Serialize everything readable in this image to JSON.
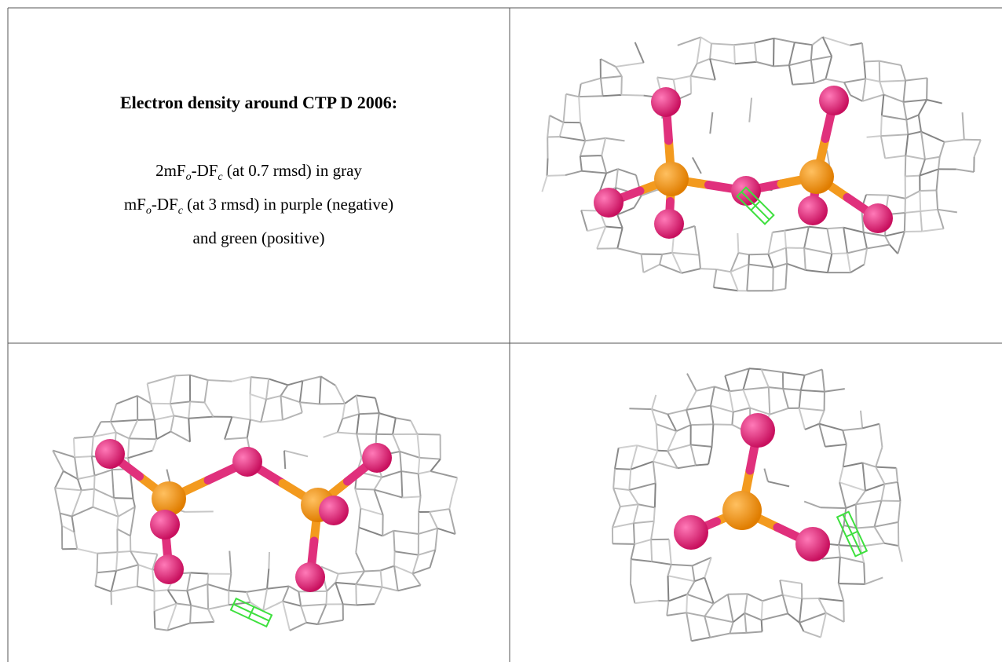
{
  "header": {
    "title": "Electron density around CTP D 2006:"
  },
  "caption": {
    "lines": [
      [
        "2mF",
        "o",
        "-DF",
        "c",
        " (at 0.7 rmsd) in gray"
      ],
      [
        "mF",
        "o",
        "-DF",
        "c",
        " (at 3 rmsd) in purple (negative)"
      ],
      [
        "and green (positive)"
      ]
    ]
  }
}
